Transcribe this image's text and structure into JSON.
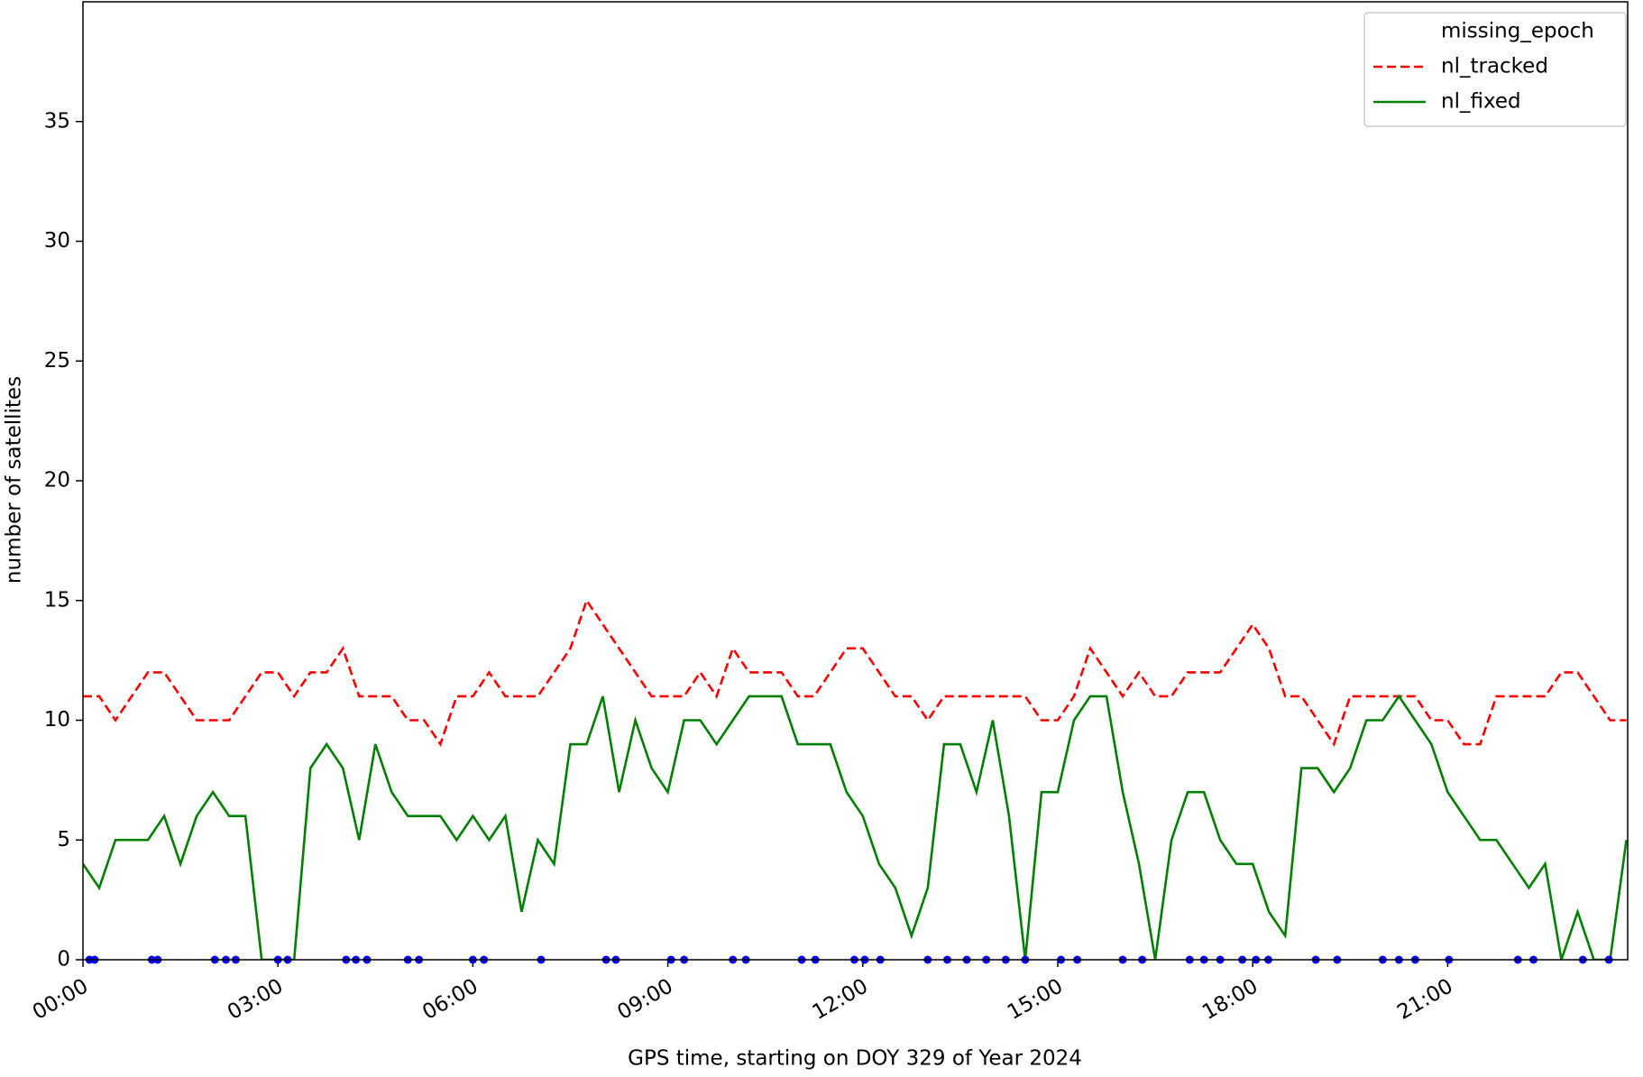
{
  "chart_data": {
    "type": "line",
    "xlabel": "GPS time, starting on DOY 329 of Year 2024",
    "ylabel": "number of satellites",
    "xlim": [
      0,
      23.77
    ],
    "ylim": [
      0,
      40
    ],
    "xticks": [
      {
        "value": 0,
        "label": "00:00"
      },
      {
        "value": 3,
        "label": "03:00"
      },
      {
        "value": 6,
        "label": "06:00"
      },
      {
        "value": 9,
        "label": "09:00"
      },
      {
        "value": 12,
        "label": "12:00"
      },
      {
        "value": 15,
        "label": "15:00"
      },
      {
        "value": 18,
        "label": "18:00"
      },
      {
        "value": 21,
        "label": "21:00"
      }
    ],
    "yticks": [
      0,
      5,
      10,
      15,
      20,
      25,
      30,
      35
    ],
    "grid": false,
    "legend": "upper right",
    "x": [
      0,
      0.25,
      0.5,
      0.75,
      1,
      1.25,
      1.5,
      1.75,
      2,
      2.25,
      2.5,
      2.75,
      3,
      3.25,
      3.5,
      3.75,
      4,
      4.25,
      4.5,
      4.75,
      5,
      5.25,
      5.5,
      5.75,
      6,
      6.25,
      6.5,
      6.75,
      7,
      7.25,
      7.5,
      7.75,
      8,
      8.25,
      8.5,
      8.75,
      9,
      9.25,
      9.5,
      9.75,
      10,
      10.25,
      10.5,
      10.75,
      11,
      11.25,
      11.5,
      11.75,
      12,
      12.25,
      12.5,
      12.75,
      13,
      13.25,
      13.5,
      13.75,
      14,
      14.25,
      14.5,
      14.75,
      15,
      15.25,
      15.5,
      15.75,
      16,
      16.25,
      16.5,
      16.75,
      17,
      17.25,
      17.5,
      17.75,
      18,
      18.25,
      18.5,
      18.75,
      19,
      19.25,
      19.5,
      19.75,
      20,
      20.25,
      20.5,
      20.75,
      21,
      21.25,
      21.5,
      21.75,
      22,
      22.25,
      22.5,
      22.75,
      23,
      23.25,
      23.5,
      23.75
    ],
    "series": [
      {
        "name": "missing_epoch",
        "type": "scatter",
        "color": "#0000ff",
        "x": [
          0.1,
          0.18,
          1.06,
          1.15,
          2.03,
          2.2,
          2.35,
          3.0,
          3.15,
          4.05,
          4.2,
          4.37,
          5.0,
          5.17,
          6.0,
          6.17,
          7.05,
          8.05,
          8.2,
          9.05,
          9.25,
          10.0,
          10.2,
          11.06,
          11.27,
          11.87,
          12.03,
          12.27,
          13.0,
          13.3,
          13.6,
          13.9,
          14.2,
          14.5,
          15.05,
          15.3,
          16.0,
          16.3,
          17.03,
          17.25,
          17.5,
          17.84,
          18.05,
          18.24,
          18.97,
          19.3,
          20.0,
          20.25,
          20.5,
          21.02,
          22.08,
          22.32,
          23.08,
          23.48
        ],
        "values": [
          0,
          0,
          0,
          0,
          0,
          0,
          0,
          0,
          0,
          0,
          0,
          0,
          0,
          0,
          0,
          0,
          0,
          0,
          0,
          0,
          0,
          0,
          0,
          0,
          0,
          0,
          0,
          0,
          0,
          0,
          0,
          0,
          0,
          0,
          0,
          0,
          0,
          0,
          0,
          0,
          0,
          0,
          0,
          0,
          0,
          0,
          0,
          0,
          0,
          0,
          0,
          0,
          0,
          0
        ]
      },
      {
        "name": "nl_tracked",
        "type": "line",
        "color": "#ff0000",
        "dashed": true,
        "values": [
          11,
          11,
          10,
          11,
          12,
          12,
          11,
          10,
          10,
          10,
          11,
          12,
          12,
          11,
          12,
          12,
          13,
          11,
          11,
          11,
          10,
          10,
          9,
          11,
          11,
          12,
          11,
          11,
          11,
          12,
          13,
          15,
          14,
          13,
          12,
          11,
          11,
          11,
          12,
          11,
          13,
          12,
          12,
          12,
          11,
          11,
          12,
          13,
          13,
          12,
          11,
          11,
          10,
          11,
          11,
          11,
          11,
          11,
          11,
          10,
          10,
          11,
          13,
          12,
          11,
          12,
          11,
          11,
          12,
          12,
          12,
          13,
          14,
          13,
          11,
          11,
          10,
          9,
          11,
          11,
          11,
          11,
          11,
          10,
          10,
          9,
          9,
          11,
          11,
          11,
          11,
          12,
          12,
          11,
          10,
          10
        ]
      },
      {
        "name": "nl_fixed",
        "type": "line",
        "color": "#008000",
        "dashed": false,
        "values": [
          4,
          3,
          5,
          5,
          5,
          6,
          4,
          6,
          7,
          6,
          6,
          0,
          0,
          0,
          8,
          9,
          8,
          5,
          9,
          7,
          6,
          6,
          6,
          5,
          6,
          5,
          6,
          2,
          5,
          4,
          9,
          9,
          11,
          7,
          10,
          8,
          7,
          10,
          10,
          9,
          10,
          11,
          11,
          11,
          9,
          9,
          9,
          7,
          6,
          4,
          3,
          1,
          3,
          9,
          9,
          7,
          10,
          6,
          0,
          7,
          7,
          10,
          11,
          11,
          7,
          4,
          0,
          5,
          7,
          7,
          5,
          4,
          4,
          2,
          1,
          8,
          8,
          7,
          8,
          10,
          10,
          11,
          10,
          9,
          7,
          6,
          5,
          5,
          4,
          3,
          4,
          0,
          2,
          0,
          0,
          5
        ]
      }
    ]
  }
}
